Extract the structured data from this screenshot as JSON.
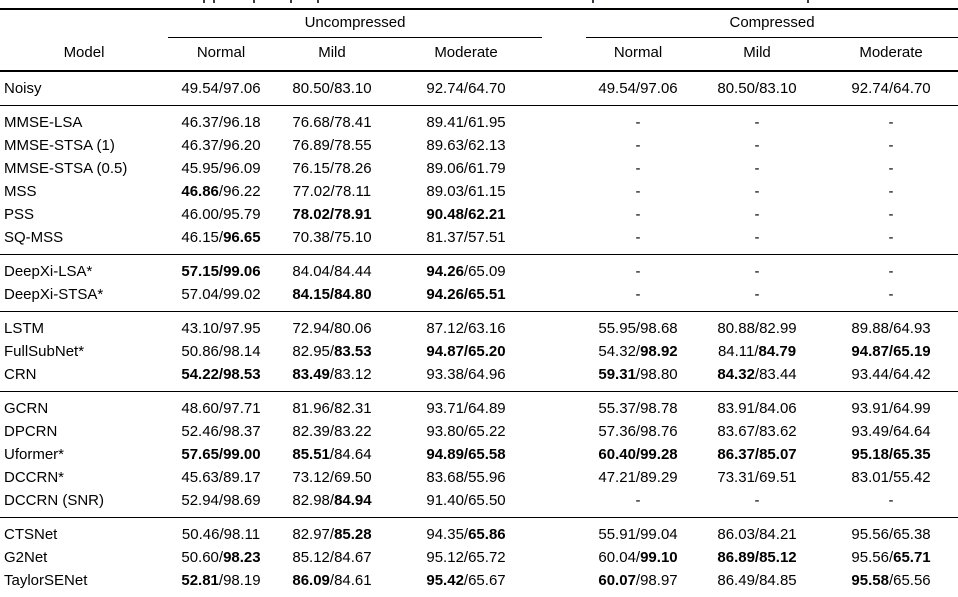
{
  "page": {
    "background": "#ffffff",
    "text_color": "#000000"
  },
  "caption_fragments": {
    "marks_x": [
      203,
      213,
      253,
      290,
      317,
      592,
      807
    ]
  },
  "table": {
    "column_groups": [
      {
        "label": "Uncompressed"
      },
      {
        "label": "Compressed"
      }
    ],
    "header": {
      "model": "Model",
      "sub_columns": [
        "Normal",
        "Mild",
        "Moderate",
        "Normal",
        "Mild",
        "Moderate"
      ]
    },
    "groups": [
      {
        "rows": [
          {
            "model": "Noisy",
            "cells": [
              [
                "49.54",
                "97.06",
                "none"
              ],
              [
                "80.50",
                "83.10",
                "none"
              ],
              [
                "92.74",
                "64.70",
                "none"
              ],
              [
                "49.54",
                "97.06",
                "none"
              ],
              [
                "80.50",
                "83.10",
                "none"
              ],
              [
                "92.74",
                "64.70",
                "none"
              ]
            ]
          }
        ]
      },
      {
        "rows": [
          {
            "model": "MMSE-LSA",
            "cells": [
              [
                "46.37",
                "96.18",
                "none"
              ],
              [
                "76.68",
                "78.41",
                "none"
              ],
              [
                "89.41",
                "61.95",
                "none"
              ],
              "-",
              "-",
              "-"
            ]
          },
          {
            "model": "MMSE-STSA (1)",
            "cells": [
              [
                "46.37",
                "96.20",
                "none"
              ],
              [
                "76.89",
                "78.55",
                "none"
              ],
              [
                "89.63",
                "62.13",
                "none"
              ],
              "-",
              "-",
              "-"
            ]
          },
          {
            "model": "MMSE-STSA (0.5)",
            "cells": [
              [
                "45.95",
                "96.09",
                "none"
              ],
              [
                "76.15",
                "78.26",
                "none"
              ],
              [
                "89.06",
                "61.79",
                "none"
              ],
              "-",
              "-",
              "-"
            ]
          },
          {
            "model": "MSS",
            "cells": [
              [
                "46.86",
                "96.22",
                "left"
              ],
              [
                "77.02",
                "78.11",
                "none"
              ],
              [
                "89.03",
                "61.15",
                "none"
              ],
              "-",
              "-",
              "-"
            ]
          },
          {
            "model": "PSS",
            "cells": [
              [
                "46.00",
                "95.79",
                "none"
              ],
              [
                "78.02",
                "78.91",
                "both"
              ],
              [
                "90.48",
                "62.21",
                "both"
              ],
              "-",
              "-",
              "-"
            ]
          },
          {
            "model": "SQ-MSS",
            "cells": [
              [
                "46.15",
                "96.65",
                "right"
              ],
              [
                "70.38",
                "75.10",
                "none"
              ],
              [
                "81.37",
                "57.51",
                "none"
              ],
              "-",
              "-",
              "-"
            ]
          }
        ]
      },
      {
        "rows": [
          {
            "model": "DeepXi-LSA*",
            "cells": [
              [
                "57.15",
                "99.06",
                "both"
              ],
              [
                "84.04",
                "84.44",
                "none"
              ],
              [
                "94.26",
                "65.09",
                "left"
              ],
              "-",
              "-",
              "-"
            ]
          },
          {
            "model": "DeepXi-STSA*",
            "cells": [
              [
                "57.04",
                "99.02",
                "none"
              ],
              [
                "84.15",
                "84.80",
                "both"
              ],
              [
                "94.26",
                "65.51",
                "both"
              ],
              "-",
              "-",
              "-"
            ]
          }
        ]
      },
      {
        "rows": [
          {
            "model": "LSTM",
            "cells": [
              [
                "43.10",
                "97.95",
                "none"
              ],
              [
                "72.94",
                "80.06",
                "none"
              ],
              [
                "87.12",
                "63.16",
                "none"
              ],
              [
                "55.95",
                "98.68",
                "none"
              ],
              [
                "80.88",
                "82.99",
                "none"
              ],
              [
                "89.88",
                "64.93",
                "none"
              ]
            ]
          },
          {
            "model": "FullSubNet*",
            "cells": [
              [
                "50.86",
                "98.14",
                "none"
              ],
              [
                "82.95",
                "83.53",
                "right"
              ],
              [
                "94.87",
                "65.20",
                "both"
              ],
              [
                "54.32",
                "98.92",
                "right"
              ],
              [
                "84.11",
                "84.79",
                "right"
              ],
              [
                "94.87",
                "65.19",
                "both"
              ]
            ]
          },
          {
            "model": "CRN",
            "cells": [
              [
                "54.22",
                "98.53",
                "both"
              ],
              [
                "83.49",
                "83.12",
                "left"
              ],
              [
                "93.38",
                "64.96",
                "none"
              ],
              [
                "59.31",
                "98.80",
                "left"
              ],
              [
                "84.32",
                "83.44",
                "left"
              ],
              [
                "93.44",
                "64.42",
                "none"
              ]
            ]
          }
        ]
      },
      {
        "rows": [
          {
            "model": "GCRN",
            "cells": [
              [
                "48.60",
                "97.71",
                "none"
              ],
              [
                "81.96",
                "82.31",
                "none"
              ],
              [
                "93.71",
                "64.89",
                "none"
              ],
              [
                "55.37",
                "98.78",
                "none"
              ],
              [
                "83.91",
                "84.06",
                "none"
              ],
              [
                "93.91",
                "64.99",
                "none"
              ]
            ]
          },
          {
            "model": "DPCRN",
            "cells": [
              [
                "52.46",
                "98.37",
                "none"
              ],
              [
                "82.39",
                "83.22",
                "none"
              ],
              [
                "93.80",
                "65.22",
                "none"
              ],
              [
                "57.36",
                "98.76",
                "none"
              ],
              [
                "83.67",
                "83.62",
                "none"
              ],
              [
                "93.49",
                "64.64",
                "none"
              ]
            ]
          },
          {
            "model": "Uformer*",
            "cells": [
              [
                "57.65",
                "99.00",
                "both"
              ],
              [
                "85.51",
                "84.64",
                "left"
              ],
              [
                "94.89",
                "65.58",
                "both"
              ],
              [
                "60.40",
                "99.28",
                "both"
              ],
              [
                "86.37",
                "85.07",
                "both"
              ],
              [
                "95.18",
                "65.35",
                "both"
              ]
            ]
          },
          {
            "model": "DCCRN*",
            "cells": [
              [
                "45.63",
                "89.17",
                "none"
              ],
              [
                "73.12",
                "69.50",
                "none"
              ],
              [
                "83.68",
                "55.96",
                "none"
              ],
              [
                "47.21",
                "89.29",
                "none"
              ],
              [
                "73.31",
                "69.51",
                "none"
              ],
              [
                "83.01",
                "55.42",
                "none"
              ]
            ]
          },
          {
            "model": "DCCRN (SNR)",
            "cells": [
              [
                "52.94",
                "98.69",
                "none"
              ],
              [
                "82.98",
                "84.94",
                "right"
              ],
              [
                "91.40",
                "65.50",
                "none"
              ],
              "-",
              "-",
              "-"
            ]
          }
        ]
      },
      {
        "rows": [
          {
            "model": "CTSNet",
            "cells": [
              [
                "50.46",
                "98.11",
                "none"
              ],
              [
                "82.97",
                "85.28",
                "right"
              ],
              [
                "94.35",
                "65.86",
                "right"
              ],
              [
                "55.91",
                "99.04",
                "none"
              ],
              [
                "86.03",
                "84.21",
                "none"
              ],
              [
                "95.56",
                "65.38",
                "none"
              ]
            ]
          },
          {
            "model": "G2Net",
            "cells": [
              [
                "50.60",
                "98.23",
                "right"
              ],
              [
                "85.12",
                "84.67",
                "none"
              ],
              [
                "95.12",
                "65.72",
                "none"
              ],
              [
                "60.04",
                "99.10",
                "right"
              ],
              [
                "86.89",
                "85.12",
                "both"
              ],
              [
                "95.56",
                "65.71",
                "right"
              ]
            ]
          },
          {
            "model": "TaylorSENet",
            "cells": [
              [
                "52.81",
                "98.19",
                "left"
              ],
              [
                "86.09",
                "84.61",
                "left"
              ],
              [
                "95.42",
                "65.67",
                "left"
              ],
              [
                "60.07",
                "98.97",
                "left"
              ],
              [
                "86.49",
                "84.85",
                "none"
              ],
              [
                "95.58",
                "65.56",
                "left"
              ]
            ]
          }
        ]
      }
    ]
  }
}
